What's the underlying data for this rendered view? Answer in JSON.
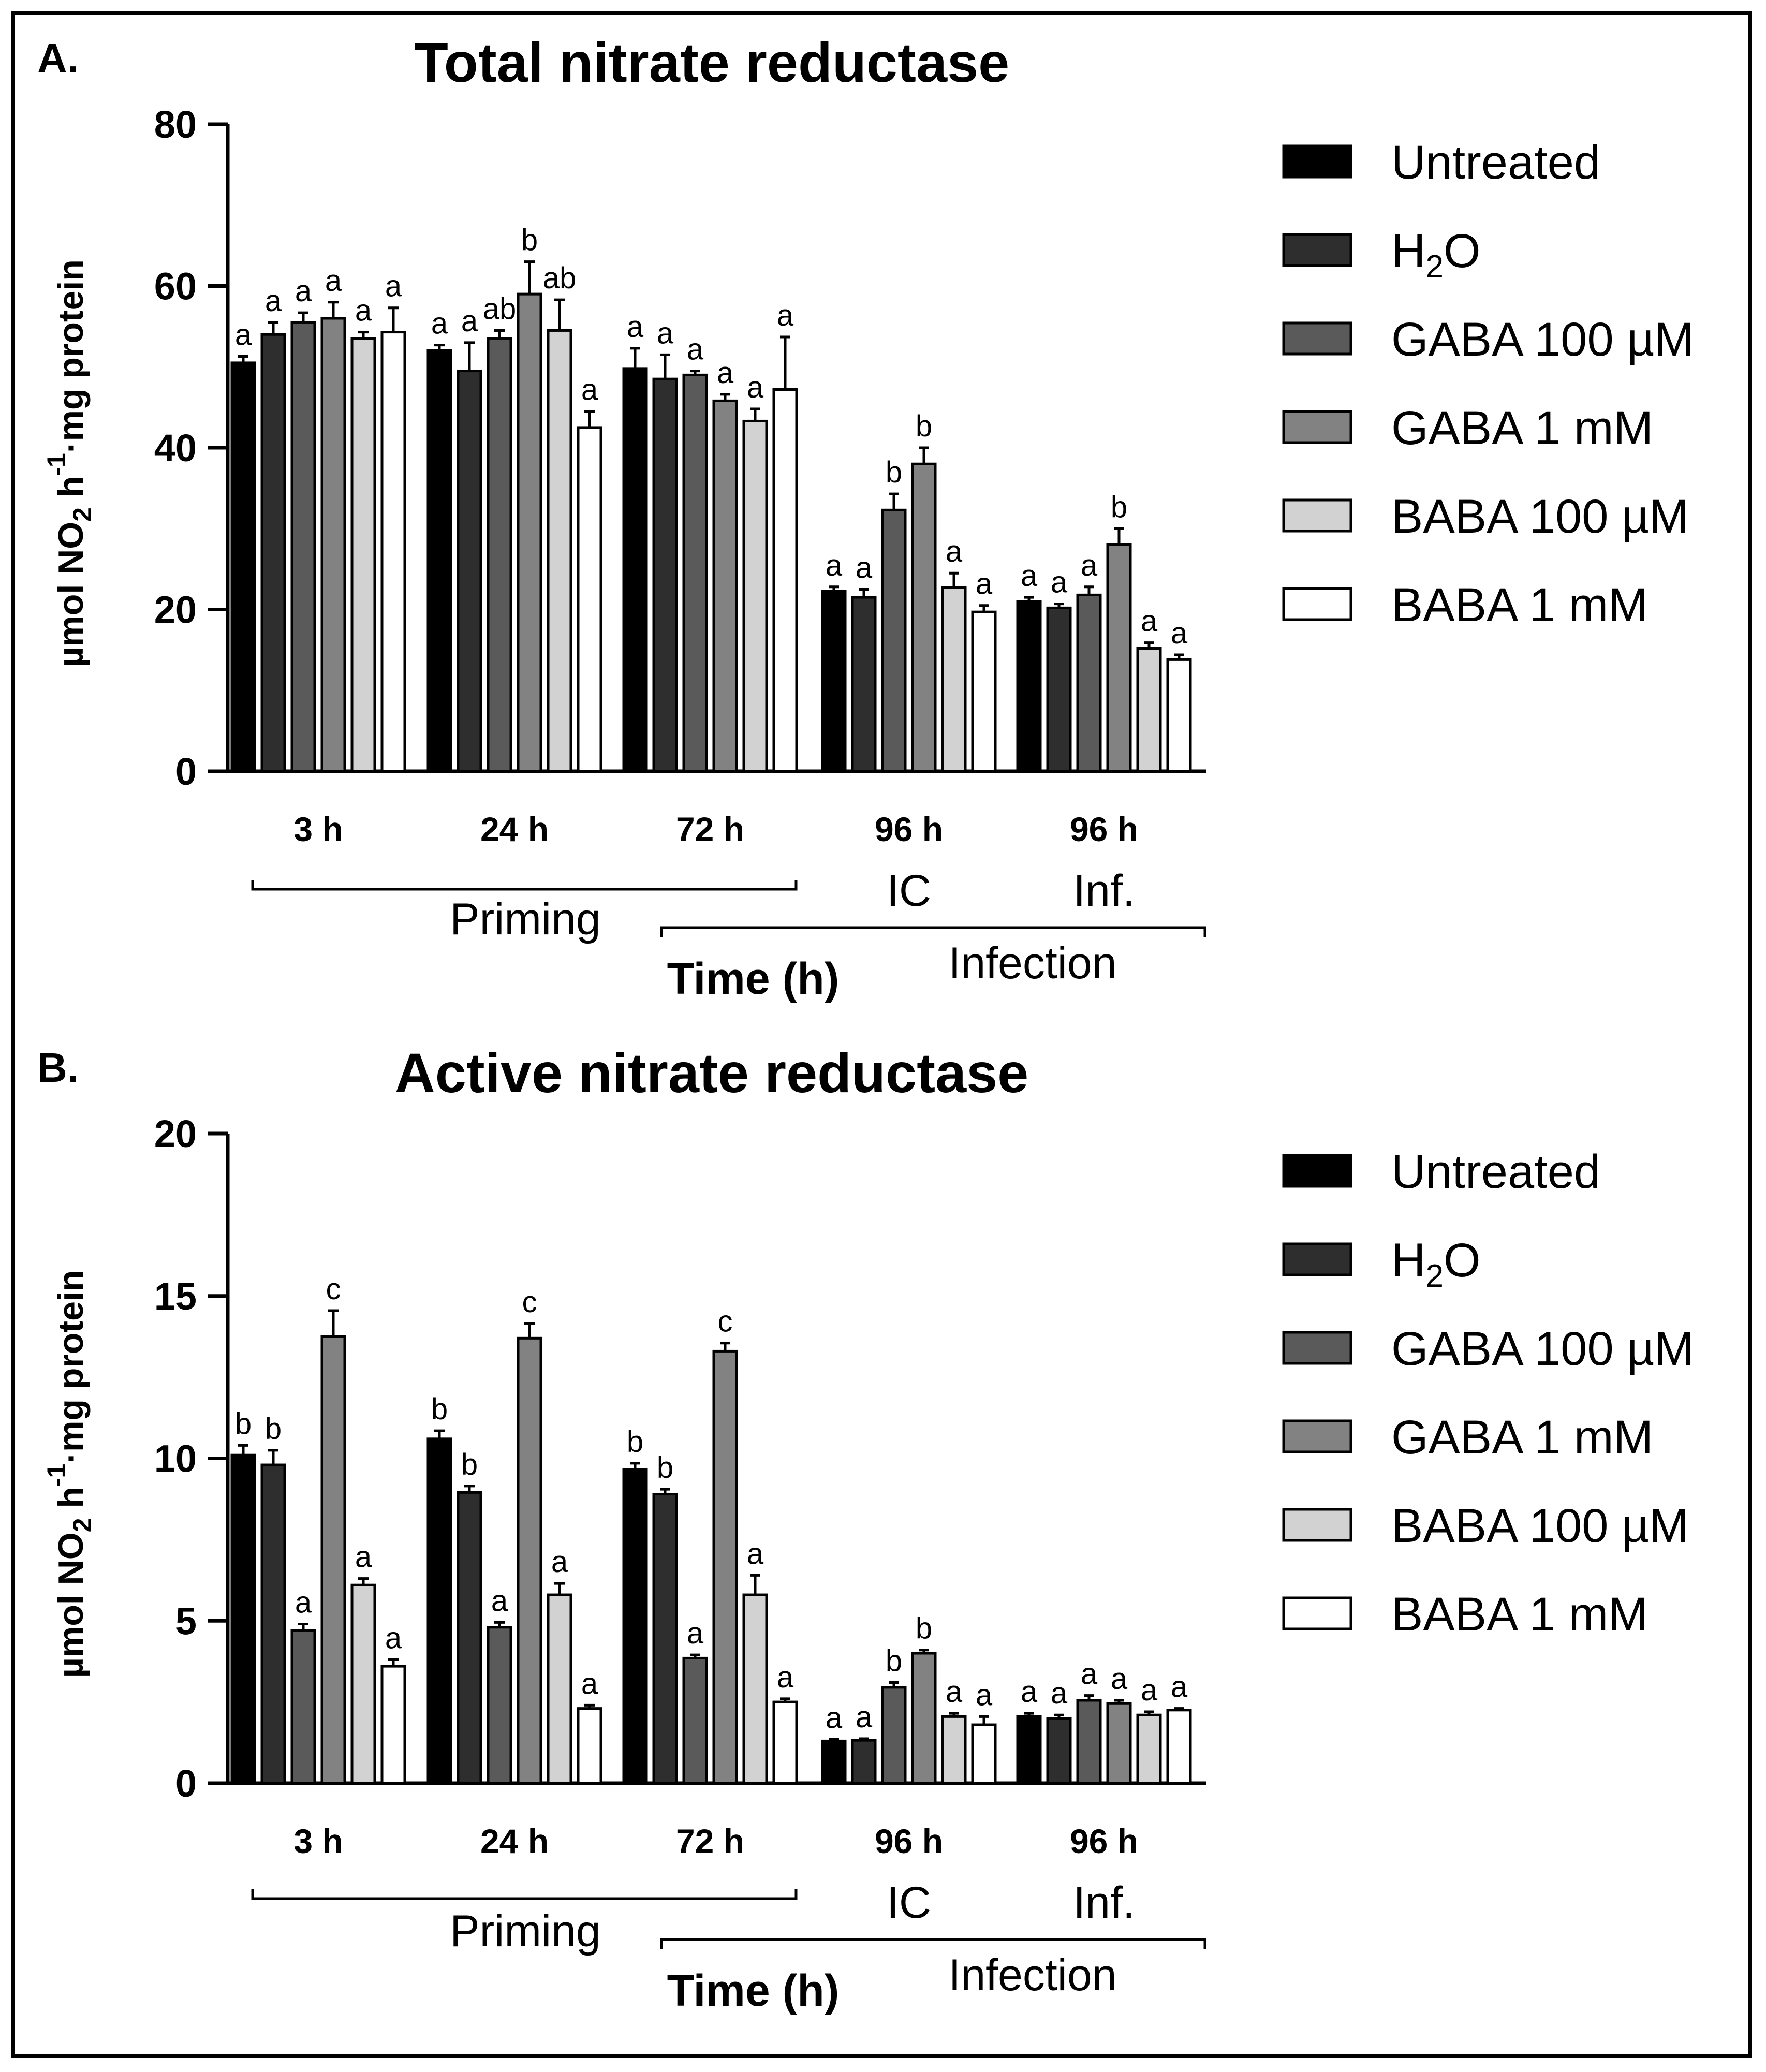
{
  "legend": [
    {
      "label": "Untreated",
      "sub": "",
      "tail": "",
      "color": "#000000"
    },
    {
      "label": "H",
      "sub": "2",
      "tail": "O",
      "color": "#2e2e2e"
    },
    {
      "label": "GABA 100 µM",
      "sub": "",
      "tail": "",
      "color": "#5a5a5a"
    },
    {
      "label": "GABA 1 mM",
      "sub": "",
      "tail": "",
      "color": "#828282"
    },
    {
      "label": "BABA 100 µM",
      "sub": "",
      "tail": "",
      "color": "#d2d2d2"
    },
    {
      "label": "BABA 1 mM",
      "sub": "",
      "tail": "",
      "color": "#ffffff"
    }
  ],
  "chart_data": [
    {
      "type": "bar",
      "panel_label": "A.",
      "title": "Total nitrate reductase",
      "ylabel": {
        "pre": "µmol NO",
        "sub": "2",
        "mid": " h",
        "sup": "-1",
        "post": "·mg protein"
      },
      "xlabel": "Time (h)",
      "ylim": [
        0,
        80
      ],
      "yticks": [
        0,
        20,
        40,
        60,
        80
      ],
      "categories": [
        "3 h",
        "24 h",
        "72 h",
        "96 h",
        "96 h"
      ],
      "sub_labels": [
        "",
        "",
        "",
        "IC",
        "Inf."
      ],
      "groups": [
        {
          "label": "Priming"
        },
        {
          "label": "Infection"
        }
      ],
      "series": [
        {
          "name": "Untreated",
          "values": [
            50.5,
            52.0,
            49.8,
            22.3,
            21.0
          ],
          "errors": [
            0.8,
            0.7,
            2.5,
            0.5,
            0.5
          ],
          "sig": [
            "a",
            "a",
            "a",
            "a",
            "a"
          ]
        },
        {
          "name": "H2O",
          "values": [
            54.0,
            49.5,
            48.5,
            21.5,
            20.2
          ],
          "errors": [
            1.5,
            3.5,
            3.0,
            1.0,
            0.5
          ],
          "sig": [
            "a",
            "a",
            "a",
            "a",
            "a"
          ]
        },
        {
          "name": "GABA 100 µM",
          "values": [
            55.5,
            53.5,
            49.0,
            32.3,
            21.8
          ],
          "errors": [
            1.2,
            1.0,
            0.5,
            2.0,
            1.0
          ],
          "sig": [
            "a",
            "ab",
            "a",
            "b",
            "a"
          ]
        },
        {
          "name": "GABA 1 mM",
          "values": [
            56.0,
            59.0,
            45.8,
            38.0,
            28.0
          ],
          "errors": [
            2.0,
            4.0,
            0.8,
            2.0,
            2.0
          ],
          "sig": [
            "a",
            "b",
            "a",
            "b",
            "b"
          ]
        },
        {
          "name": "BABA 100 µM",
          "values": [
            53.5,
            54.5,
            43.3,
            22.7,
            15.2
          ],
          "errors": [
            0.8,
            3.8,
            1.5,
            1.8,
            0.7
          ],
          "sig": [
            "a",
            "ab",
            "a",
            "a",
            "a"
          ]
        },
        {
          "name": "BABA 1 mM",
          "values": [
            54.3,
            42.5,
            47.2,
            19.7,
            13.8
          ],
          "errors": [
            3.0,
            2.0,
            6.5,
            0.8,
            0.6
          ],
          "sig": [
            "a",
            "a",
            "a",
            "a",
            "a"
          ]
        }
      ]
    },
    {
      "type": "bar",
      "panel_label": "B.",
      "title": "Active nitrate reductase",
      "ylabel": {
        "pre": "µmol NO",
        "sub": "2",
        "mid": " h",
        "sup": "-1",
        "post": "·mg protein"
      },
      "xlabel": "Time (h)",
      "ylim": [
        0,
        20
      ],
      "yticks": [
        0,
        5,
        10,
        15,
        20
      ],
      "categories": [
        "3 h",
        "24 h",
        "72 h",
        "96 h",
        "96 h"
      ],
      "sub_labels": [
        "",
        "",
        "",
        "IC",
        "Inf."
      ],
      "groups": [
        {
          "label": "Priming"
        },
        {
          "label": "Infection"
        }
      ],
      "series": [
        {
          "name": "Untreated",
          "values": [
            10.1,
            10.6,
            9.65,
            1.3,
            2.05
          ],
          "errors": [
            0.3,
            0.25,
            0.2,
            0.05,
            0.1
          ],
          "sig": [
            "b",
            "b",
            "b",
            "a",
            "a"
          ]
        },
        {
          "name": "H2O",
          "values": [
            9.8,
            8.95,
            8.9,
            1.32,
            2.0
          ],
          "errors": [
            0.45,
            0.2,
            0.15,
            0.05,
            0.1
          ],
          "sig": [
            "b",
            "b",
            "b",
            "a",
            "a"
          ]
        },
        {
          "name": "GABA 100 µM",
          "values": [
            4.7,
            4.8,
            3.85,
            2.95,
            2.55
          ],
          "errors": [
            0.2,
            0.15,
            0.1,
            0.15,
            0.15
          ],
          "sig": [
            "a",
            "a",
            "a",
            "b",
            "a"
          ]
        },
        {
          "name": "GABA 1 mM",
          "values": [
            13.75,
            13.7,
            13.3,
            4.0,
            2.45
          ],
          "errors": [
            0.8,
            0.45,
            0.25,
            0.1,
            0.1
          ],
          "sig": [
            "c",
            "c",
            "c",
            "b",
            "a"
          ]
        },
        {
          "name": "BABA 100 µM",
          "values": [
            6.1,
            5.8,
            5.8,
            2.05,
            2.1
          ],
          "errors": [
            0.2,
            0.35,
            0.6,
            0.1,
            0.1
          ],
          "sig": [
            "a",
            "a",
            "a",
            "a",
            "a"
          ]
        },
        {
          "name": "BABA 1 mM",
          "values": [
            3.6,
            2.3,
            2.5,
            1.8,
            2.25
          ],
          "errors": [
            0.2,
            0.1,
            0.1,
            0.25,
            0.05
          ],
          "sig": [
            "a",
            "a",
            "a",
            "a",
            "a"
          ]
        }
      ]
    }
  ]
}
